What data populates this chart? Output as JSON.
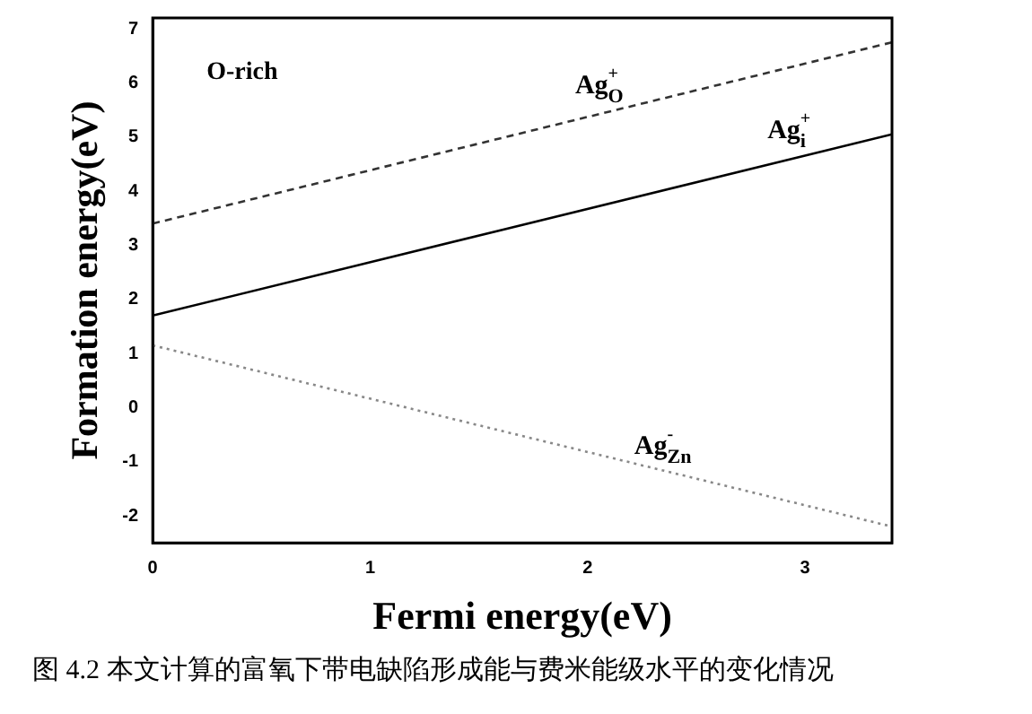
{
  "chart_data": {
    "type": "line",
    "xlabel": "Fermi energy(eV)",
    "ylabel": "Formation energy(eV)",
    "x": [
      0,
      3.4
    ],
    "xlim": [
      0,
      3.4
    ],
    "xticks": [
      0,
      1,
      2,
      3
    ],
    "ylim": [
      -2.5,
      7.2
    ],
    "yticks": [
      -2,
      -1,
      0,
      1,
      2,
      3,
      4,
      5,
      6,
      7
    ],
    "series": [
      {
        "name": "Ag$^{+}$$_{O}$",
        "color": "#333333",
        "values": [
          3.4,
          6.75
        ],
        "line_style": "dashed"
      },
      {
        "name": "Ag$^{+}$$_{i}$",
        "color": "#000000",
        "values": [
          1.7,
          5.05
        ],
        "line_style": "solid"
      },
      {
        "name": "Ag$^{-}$$_{Zn}$",
        "color": "#888888",
        "values": [
          1.15,
          -2.2
        ],
        "line_style": "dotted"
      }
    ],
    "grid": false,
    "legend": false,
    "marker": "none",
    "annotations": [
      "O-rich",
      "图 4.2 本文计算的富氧下带电缺陷形成能与费米能级水平的变化情况"
    ]
  }
}
